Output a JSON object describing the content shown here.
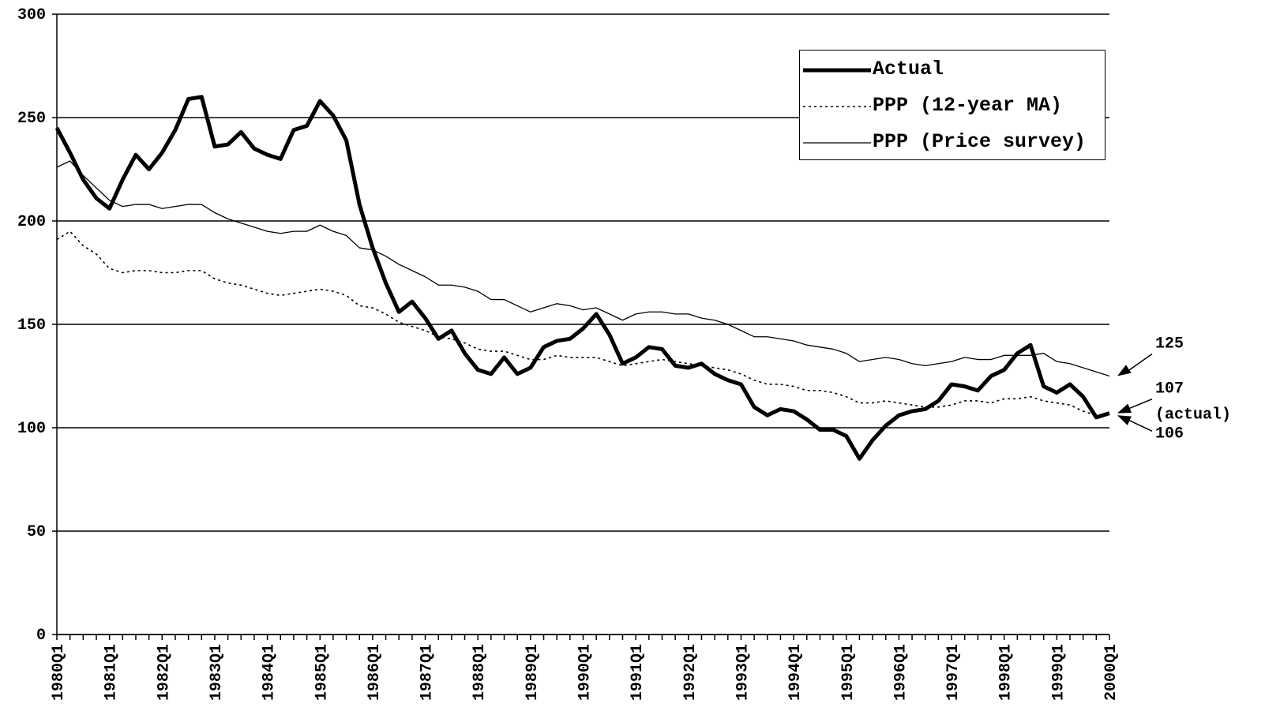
{
  "chart_data": {
    "type": "line",
    "categories": [
      "1980Q1",
      null,
      null,
      null,
      "1981Q1",
      null,
      null,
      null,
      "1982Q1",
      null,
      null,
      null,
      "1983Q1",
      null,
      null,
      null,
      "1984Q1",
      null,
      null,
      null,
      "1985Q1",
      null,
      null,
      null,
      "1986Q1",
      null,
      null,
      null,
      "1987Q1",
      null,
      null,
      null,
      "1988Q1",
      null,
      null,
      null,
      "1989Q1",
      null,
      null,
      null,
      "1990Q1",
      null,
      null,
      null,
      "1991Q1",
      null,
      null,
      null,
      "1992Q1",
      null,
      null,
      null,
      "1993Q1",
      null,
      null,
      null,
      "1994Q1",
      null,
      null,
      null,
      "1995Q1",
      null,
      null,
      null,
      "1996Q1",
      null,
      null,
      null,
      "1997Q1",
      null,
      null,
      null,
      "1998Q1",
      null,
      null,
      null,
      "1999Q1",
      null,
      null,
      null,
      "2000Q1"
    ],
    "series": [
      {
        "name": "Actual",
        "color": "#000000",
        "style": "thick",
        "values": [
          245,
          233,
          220,
          211,
          206,
          220,
          232,
          225,
          233,
          244,
          259,
          260,
          236,
          237,
          243,
          235,
          232,
          230,
          244,
          246,
          258,
          251,
          239,
          208,
          187,
          170,
          156,
          161,
          153,
          143,
          147,
          136,
          128,
          126,
          134,
          126,
          129,
          139,
          142,
          143,
          148,
          155,
          145,
          131,
          134,
          139,
          138,
          130,
          129,
          131,
          126,
          123,
          121,
          110,
          106,
          109,
          108,
          104,
          99,
          99,
          96,
          85,
          94,
          101,
          106,
          108,
          109,
          113,
          121,
          120,
          118,
          125,
          128,
          136,
          140,
          120,
          117,
          121,
          115,
          105,
          107
        ]
      },
      {
        "name": "PPP (12-year MA)",
        "color": "#000000",
        "style": "dotted",
        "values": [
          191,
          195,
          188,
          184,
          177,
          175,
          176,
          176,
          175,
          175,
          176,
          176,
          172,
          170,
          169,
          167,
          165,
          164,
          165,
          166,
          167,
          166,
          164,
          159,
          158,
          155,
          151,
          149,
          147,
          144,
          143,
          141,
          138,
          137,
          137,
          135,
          133,
          133,
          135,
          134,
          134,
          134,
          132,
          130,
          131,
          132,
          133,
          132,
          131,
          130,
          129,
          128,
          126,
          123,
          121,
          121,
          120,
          118,
          118,
          117,
          115,
          112,
          112,
          113,
          112,
          111,
          110,
          110,
          111,
          113,
          113,
          112,
          114,
          114,
          115,
          113,
          112,
          111,
          108,
          106,
          106
        ]
      },
      {
        "name": "PPP (Price survey)",
        "color": "#000000",
        "style": "thin",
        "values": [
          226,
          229,
          222,
          216,
          210,
          207,
          208,
          208,
          206,
          207,
          208,
          208,
          204,
          201,
          199,
          197,
          195,
          194,
          195,
          195,
          198,
          195,
          193,
          187,
          186,
          183,
          179,
          176,
          173,
          169,
          169,
          168,
          166,
          162,
          162,
          159,
          156,
          158,
          160,
          159,
          157,
          158,
          155,
          152,
          155,
          156,
          156,
          155,
          155,
          153,
          152,
          150,
          147,
          144,
          144,
          143,
          142,
          140,
          139,
          138,
          136,
          132,
          133,
          134,
          133,
          131,
          130,
          131,
          132,
          134,
          133,
          133,
          135,
          135,
          135,
          136,
          132,
          131,
          129,
          127,
          125
        ]
      }
    ],
    "ylim": [
      0,
      300
    ],
    "yticks": [
      0,
      50,
      100,
      150,
      200,
      250,
      300
    ],
    "grid": true,
    "legend": "upper right",
    "annotations": [
      {
        "lines": [
          "125"
        ],
        "value": 125
      },
      {
        "lines": [
          "107",
          "(actual)"
        ],
        "value": 107
      },
      {
        "lines": [
          "106"
        ],
        "value": 106
      }
    ]
  }
}
